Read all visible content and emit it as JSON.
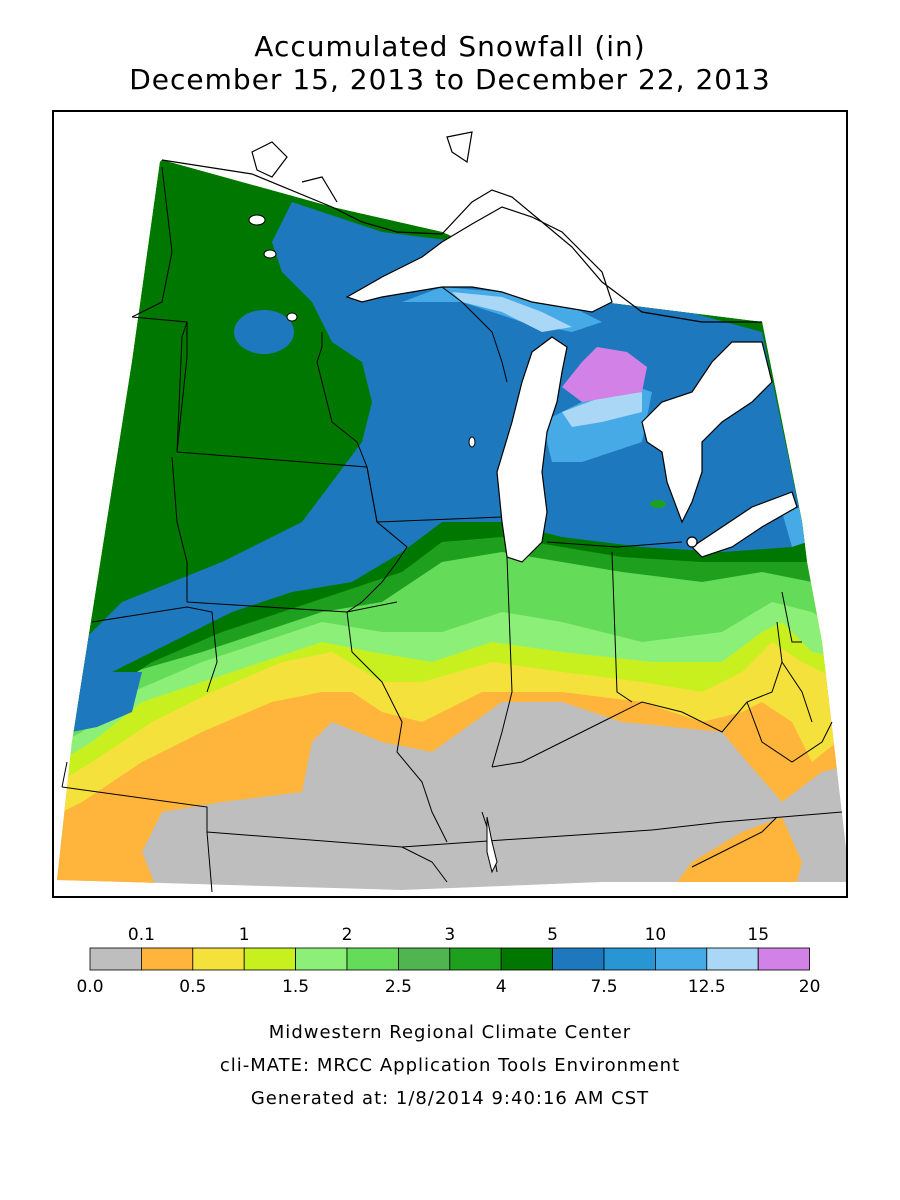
{
  "title": {
    "line1": "Accumulated Snowfall (in)",
    "line2": "December 15, 2013 to December 22, 2013"
  },
  "legend": {
    "upper_labels": [
      "0.1",
      "1",
      "2",
      "3",
      "5",
      "10",
      "15"
    ],
    "lower_labels": [
      "0.0",
      "0.5",
      "1.5",
      "2.5",
      "4",
      "7.5",
      "12.5",
      "20"
    ],
    "colors": [
      "#bebebe",
      "#ffb43c",
      "#f5e13c",
      "#c8f01e",
      "#8cf078",
      "#64dc5a",
      "#50b450",
      "#1ea01e",
      "#007800",
      "#1e78be",
      "#2896d2",
      "#46aae6",
      "#aad7f5",
      "#d282e6"
    ]
  },
  "map": {
    "background": "#ffffff",
    "water": "#ffffff",
    "zones": [
      {
        "name": "gray",
        "color": "#bebebe"
      },
      {
        "name": "orange",
        "color": "#ffb43c"
      },
      {
        "name": "yellow",
        "color": "#f5e13c"
      },
      {
        "name": "lime",
        "color": "#c8f01e"
      },
      {
        "name": "light-green",
        "color": "#8cf078"
      },
      {
        "name": "green",
        "color": "#64dc5a"
      },
      {
        "name": "mid-green",
        "color": "#1ea01e"
      },
      {
        "name": "dark-green",
        "color": "#007800"
      },
      {
        "name": "blue",
        "color": "#1e78be"
      },
      {
        "name": "light-blue",
        "color": "#46aae6"
      },
      {
        "name": "pale-blue",
        "color": "#aad7f5"
      },
      {
        "name": "purple",
        "color": "#d282e6"
      }
    ]
  },
  "footer": {
    "line1": "Midwestern Regional Climate Center",
    "line2": "cli-MATE: MRCC Application Tools Environment",
    "line3": "Generated at: 1/8/2014 9:40:16 AM CST"
  }
}
